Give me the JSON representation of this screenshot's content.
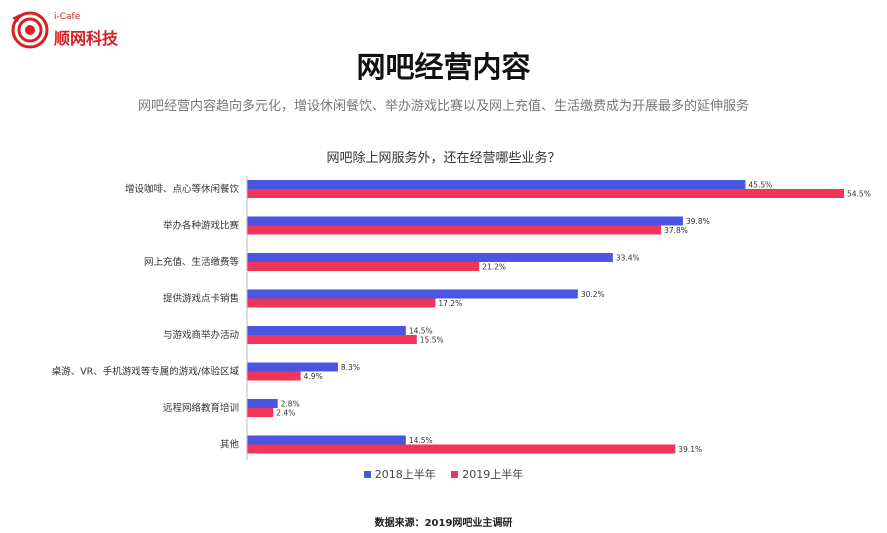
{
  "logo": {
    "top_text": "i-Cafe",
    "brand": "顺网科技"
  },
  "title": "网吧经营内容",
  "subtitle": "网吧经营内容趋向多元化，增设休闲餐饮、举办游戏比赛以及网上充值、生活缴费成为开展最多的延伸服务",
  "source": "数据来源：2019网吧业主调研",
  "colors": {
    "series_2018": "#4a56e2",
    "series_2019": "#f0345a",
    "logo_red": "#d71f26"
  },
  "chart_data": {
    "type": "bar",
    "orientation": "horizontal",
    "title": "网吧除上网服务外，还在经营哪些业务？",
    "categories": [
      "增设咖啡、点心等休闲餐饮",
      "举办各种游戏比赛",
      "网上充值、生活缴费等",
      "提供游戏点卡销售",
      "与游戏商举办活动",
      "桌游、VR、手机游戏等专属的游戏/体验区域",
      "远程网络教育培训",
      "其他"
    ],
    "series": [
      {
        "name": "2018上半年",
        "values": [
          45.5,
          39.8,
          33.4,
          30.2,
          14.5,
          8.3,
          2.8,
          14.5
        ],
        "labels": [
          "45.5%",
          "39.8%",
          "33.4%",
          "30.2%",
          "14.5%",
          "8.3%",
          "2.8%",
          "14.5%"
        ]
      },
      {
        "name": "2019上半年",
        "values": [
          54.5,
          37.8,
          21.2,
          17.2,
          15.5,
          4.9,
          2.4,
          39.1
        ],
        "labels": [
          "54.5%",
          "37.8%",
          "21.2%",
          "17.2%",
          "15.5%",
          "4.9%",
          "2.4%",
          "39.1%"
        ]
      }
    ],
    "xlim": [
      0,
      54.5
    ],
    "legend_position": "bottom",
    "grid": false
  }
}
